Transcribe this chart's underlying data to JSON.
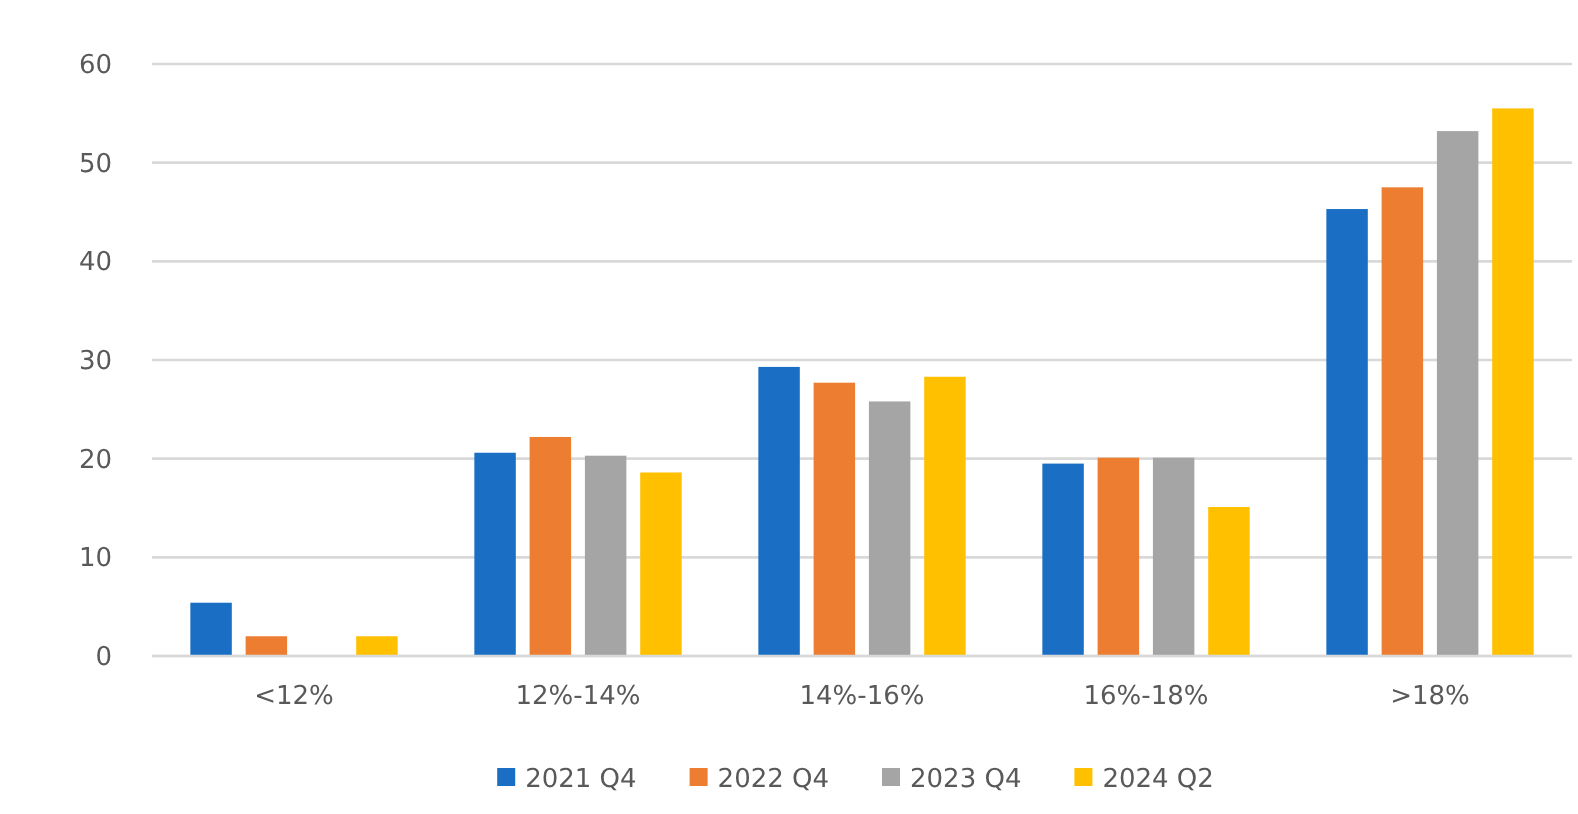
{
  "chart_data": {
    "type": "bar",
    "categories": [
      "<12%",
      "12%-14%",
      "14%-16%",
      "16%-18%",
      ">18%"
    ],
    "series": [
      {
        "name": "2021 Q4",
        "color": "#1a6fc4",
        "values": [
          5.4,
          20.6,
          29.3,
          19.5,
          45.3
        ]
      },
      {
        "name": "2022 Q4",
        "color": "#ed7d31",
        "values": [
          2,
          22.2,
          27.7,
          20.1,
          47.5
        ]
      },
      {
        "name": "2023 Q4",
        "color": "#a5a5a5",
        "values": [
          0,
          20.3,
          25.8,
          20.1,
          53.2
        ]
      },
      {
        "name": "2024 Q2",
        "color": "#ffc000",
        "values": [
          2,
          18.6,
          28.3,
          15.1,
          55.5
        ]
      }
    ],
    "ylim": [
      0,
      60
    ],
    "yticks": [
      0,
      10,
      20,
      30,
      40,
      50,
      60
    ],
    "grid": "y",
    "legend": "bottom"
  }
}
